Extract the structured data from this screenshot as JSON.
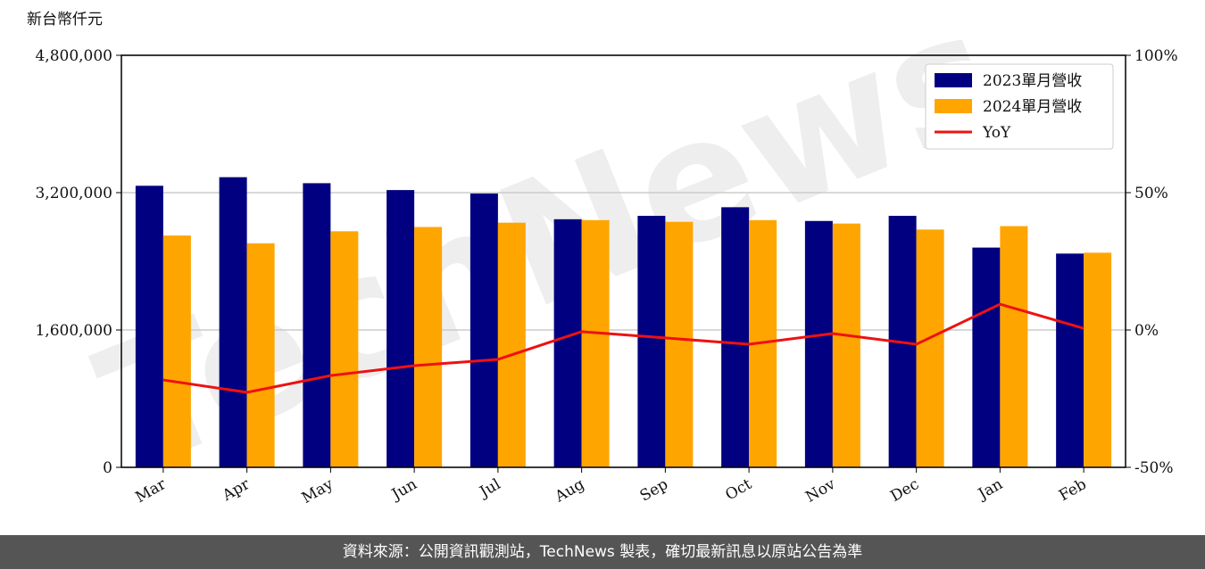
{
  "chart_data": {
    "type": "bar-line",
    "unit_label": "新台幣仟元",
    "watermark": "TechNews",
    "categories": [
      "Mar",
      "Apr",
      "May",
      "Jun",
      "Jul",
      "Aug",
      "Sep",
      "Oct",
      "Nov",
      "Dec",
      "Jan",
      "Feb"
    ],
    "series": [
      {
        "name": "2023單月營收",
        "color": "#000080",
        "values": [
          3280000,
          3380000,
          3310000,
          3230000,
          3190000,
          2890000,
          2930000,
          3030000,
          2870000,
          2930000,
          2560000,
          2490000
        ]
      },
      {
        "name": "2024單月營收",
        "color": "#ffa500",
        "values": [
          2700000,
          2610000,
          2750000,
          2800000,
          2850000,
          2880000,
          2860000,
          2880000,
          2840000,
          2770000,
          2810000,
          2500000
        ]
      },
      {
        "name": "YoY",
        "color": "#ee1111",
        "axis": "y2",
        "values": [
          -18.2,
          -22.7,
          -16.6,
          -13,
          -10.7,
          -0.6,
          -2.9,
          -5.2,
          -1.3,
          -5.2,
          9.4,
          0.6
        ]
      }
    ],
    "ylim": [
      0,
      4800000
    ],
    "yticks": [
      0,
      {
        "value": 1600000,
        "label": "1,600,000"
      },
      {
        "value": 3200000,
        "label": "3,200,000"
      },
      {
        "value": 4800000,
        "label": "4,800,000"
      }
    ],
    "y2lim": [
      -50,
      100
    ],
    "y2ticks": [
      {
        "value": -50,
        "label": "-50%"
      },
      {
        "value": 0,
        "label": "0%"
      },
      {
        "value": 50,
        "label": "50%"
      },
      {
        "value": 100,
        "label": "100%"
      }
    ],
    "grid": true,
    "legend": "upper right",
    "footer": "資料來源：公開資訊觀測站，TechNews 製表，確切最新訊息以原站公告為準"
  }
}
